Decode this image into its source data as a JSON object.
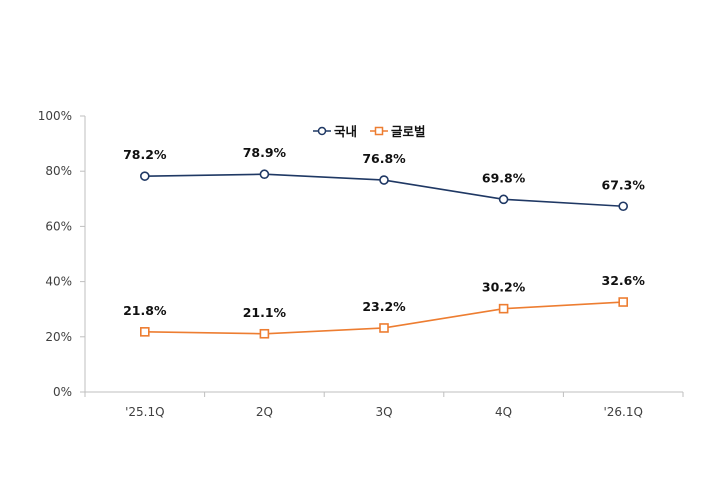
{
  "chart_data": {
    "type": "line",
    "categories": [
      "'25.1Q",
      "2Q",
      "3Q",
      "4Q",
      "'26.1Q"
    ],
    "y_ticks": [
      "0%",
      "20%",
      "40%",
      "60%",
      "80%",
      "100%"
    ],
    "ylim": [
      0,
      100
    ],
    "grid": false,
    "legend_position": "top-center",
    "series": [
      {
        "name": "국내",
        "values": [
          78.2,
          78.9,
          76.8,
          69.8,
          67.3
        ],
        "labels": [
          "78.2%",
          "78.9%",
          "76.8%",
          "69.8%",
          "67.3%"
        ],
        "color": "#1f3864",
        "marker": "circle"
      },
      {
        "name": "글로벌",
        "values": [
          21.8,
          21.1,
          23.2,
          30.2,
          32.6
        ],
        "labels": [
          "21.8%",
          "21.1%",
          "23.2%",
          "30.2%",
          "32.6%"
        ],
        "color": "#ed7d31",
        "marker": "square"
      }
    ]
  }
}
